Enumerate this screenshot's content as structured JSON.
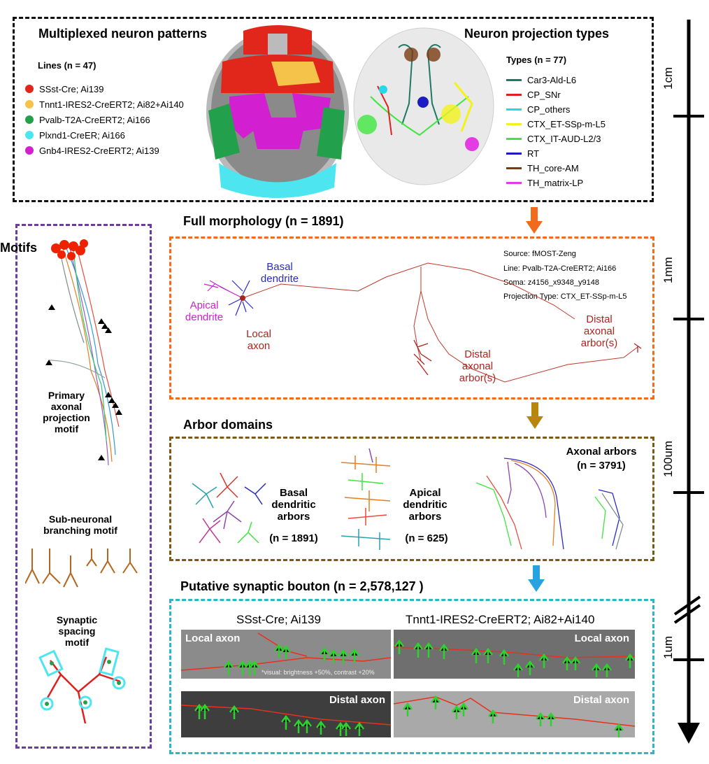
{
  "top": {
    "left_title": "Multiplexed neuron patterns",
    "lines_header": "Lines (n = 47)",
    "lines": [
      {
        "label": "SSst-Cre; Ai139",
        "color": "#e1261c"
      },
      {
        "label": "Tnnt1-IRES2-CreERT2; Ai82+Ai140",
        "color": "#f5c24a"
      },
      {
        "label": "Pvalb-T2A-CreERT2; Ai166",
        "color": "#23a04b"
      },
      {
        "label": "Plxnd1-CreER; Ai166",
        "color": "#4de6f0"
      },
      {
        "label": "Gnb4-IRES2-CreERT2; Ai139",
        "color": "#d21fd0"
      }
    ],
    "right_title": "Neuron projection types",
    "types_header": "Types (n = 77)",
    "types": [
      {
        "label": "Car3-Ald-L6",
        "color": "#1f7a63"
      },
      {
        "label": "CP_SNr",
        "color": "#e01f1f"
      },
      {
        "label": "CP_others",
        "color": "#27d8e8"
      },
      {
        "label": "CTX_ET-SSp-m-L5",
        "color": "#f2f21c"
      },
      {
        "label": "CTX_IT-AUD-L2/3",
        "color": "#3ee63e"
      },
      {
        "label": "RT",
        "color": "#1c1cc4"
      },
      {
        "label": "TH_core-AM",
        "color": "#7a3a14"
      },
      {
        "label": "TH_matrix-LP",
        "color": "#e43ce4"
      }
    ]
  },
  "motifs": {
    "title": "Motifs",
    "primary": "Primary axonal projection motif",
    "sub": "Sub-neuronal branching motif",
    "synaptic": "Synaptic spacing motif"
  },
  "full_morph": {
    "title": "Full morphology (n = 1891)",
    "source": "Source: fMOST-Zeng",
    "line": "Line: Pvalb-T2A-CreERT2; Ai166",
    "soma": "Soma: z4156_x9348_y9148",
    "ptype": "Projection Type: CTX_ET-SSp-m-L5",
    "basal": "Basal dendrite",
    "apical": "Apical dendrite",
    "local": "Local axon",
    "distal1": "Distal axonal arbor(s)",
    "distal2": "Distal axonal arbor(s)"
  },
  "arbor": {
    "title": "Arbor domains",
    "basal": "Basal dendritic arbors",
    "basal_n": "(n = 1891)",
    "apical": "Apical dendritic arbors",
    "apical_n": "(n = 625)",
    "axonal": "Axonal arbors",
    "axonal_n": "(n = 3791)"
  },
  "bouton": {
    "title": "Putative synaptic bouton (n = 2,578,127 )",
    "left_line": "SSst-Cre; Ai139",
    "right_line": "Tnnt1-IRES2-CreERT2; Ai82+Ai140",
    "local": "Local axon",
    "distal": "Distal axon",
    "note": "*visual: brightness +50%, contrast +20%"
  },
  "scale": [
    "1cm",
    "1mm",
    "100um",
    "1um"
  ],
  "colors": {
    "orange": "#f26a1b",
    "brown": "#b8860b",
    "cyan": "#29a3e0",
    "axon": "#b0231c"
  }
}
